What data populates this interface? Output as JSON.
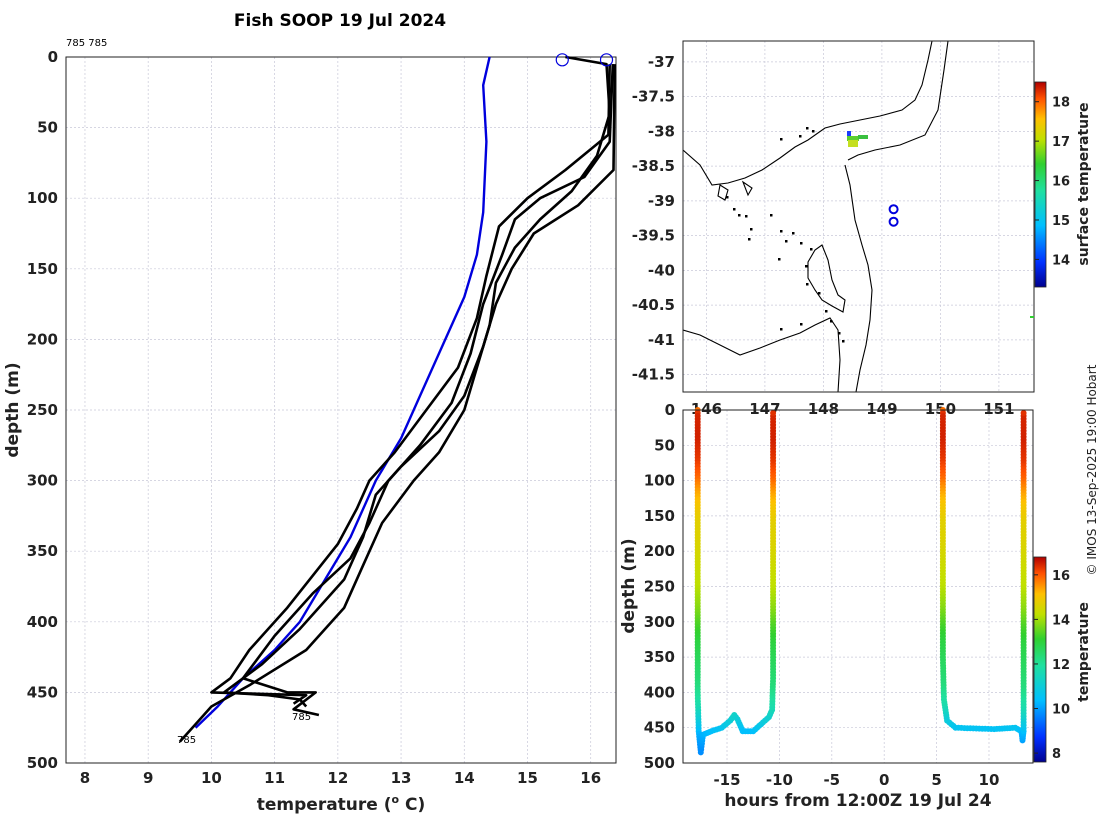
{
  "title": "Fish SOOP 19 Jul 2024",
  "station_label": "785 785",
  "credit": "© IMOS 13-Sep-2025 19:00 Hobart",
  "chart_data": [
    {
      "type": "line",
      "name": "temperature-profiles",
      "xlabel": "temperature (°C)",
      "ylabel": "depth (m)",
      "xlim": [
        7.7,
        16.4
      ],
      "ylim": [
        500,
        0
      ],
      "xticks": [
        8,
        9,
        10,
        11,
        12,
        13,
        14,
        15,
        16
      ],
      "yticks": [
        0,
        50,
        100,
        150,
        200,
        250,
        300,
        350,
        400,
        450,
        500
      ],
      "annotations": [
        "785",
        "785"
      ],
      "series": [
        {
          "name": "climatology",
          "color": "#0000dd",
          "points": [
            [
              14.4,
              0
            ],
            [
              14.3,
              20
            ],
            [
              14.35,
              60
            ],
            [
              14.3,
              110
            ],
            [
              14.2,
              140
            ],
            [
              14.0,
              170
            ],
            [
              13.7,
              200
            ],
            [
              13.3,
              240
            ],
            [
              13.0,
              270
            ],
            [
              12.6,
              300
            ],
            [
              12.2,
              340
            ],
            [
              11.8,
              370
            ],
            [
              11.4,
              400
            ],
            [
              11.0,
              420
            ],
            [
              10.5,
              440
            ],
            [
              10.1,
              460
            ],
            [
              9.75,
              475
            ]
          ]
        },
        {
          "name": "profile-1",
          "color": "#000000",
          "points": [
            [
              15.6,
              0
            ],
            [
              16.25,
              5
            ],
            [
              16.3,
              40
            ],
            [
              16.1,
              70
            ],
            [
              15.7,
              95
            ],
            [
              15.2,
              115
            ],
            [
              14.8,
              135
            ],
            [
              14.5,
              160
            ],
            [
              14.4,
              190
            ],
            [
              14.2,
              220
            ],
            [
              14.0,
              250
            ],
            [
              13.6,
              280
            ],
            [
              13.2,
              300
            ],
            [
              12.7,
              330
            ],
            [
              12.4,
              360
            ],
            [
              12.1,
              390
            ],
            [
              11.5,
              420
            ],
            [
              10.6,
              445
            ],
            [
              10.0,
              460
            ],
            [
              9.8,
              470
            ],
            [
              9.6,
              480
            ],
            [
              9.5,
              485
            ]
          ]
        },
        {
          "name": "profile-2",
          "color": "#000000",
          "points": [
            [
              16.35,
              5
            ],
            [
              16.3,
              60
            ],
            [
              15.9,
              85
            ],
            [
              15.2,
              100
            ],
            [
              14.8,
              115
            ],
            [
              14.6,
              140
            ],
            [
              14.3,
              175
            ],
            [
              14.1,
              210
            ],
            [
              13.8,
              245
            ],
            [
              13.3,
              275
            ],
            [
              12.8,
              300
            ],
            [
              12.5,
              330
            ],
            [
              12.2,
              355
            ],
            [
              11.6,
              380
            ],
            [
              11.0,
              410
            ],
            [
              10.5,
              440
            ],
            [
              11.2,
              450
            ],
            [
              11.65,
              450
            ],
            [
              11.3,
              462
            ],
            [
              11.7,
              466
            ]
          ]
        },
        {
          "name": "profile-3",
          "color": "#000000",
          "points": [
            [
              16.38,
              5
            ],
            [
              16.36,
              80
            ],
            [
              15.8,
              105
            ],
            [
              15.1,
              125
            ],
            [
              14.75,
              150
            ],
            [
              14.5,
              175
            ],
            [
              14.3,
              205
            ],
            [
              14.0,
              240
            ],
            [
              13.6,
              265
            ],
            [
              13.0,
              290
            ],
            [
              12.6,
              310
            ],
            [
              12.4,
              340
            ],
            [
              12.1,
              370
            ],
            [
              11.4,
              405
            ],
            [
              10.8,
              430
            ],
            [
              10.2,
              450
            ],
            [
              10.9,
              452
            ],
            [
              11.4,
              455
            ],
            [
              11.5,
              460
            ]
          ]
        },
        {
          "name": "profile-4",
          "color": "#000000",
          "points": [
            [
              16.3,
              5
            ],
            [
              16.28,
              55
            ],
            [
              15.6,
              80
            ],
            [
              15.0,
              100
            ],
            [
              14.55,
              120
            ],
            [
              14.35,
              155
            ],
            [
              14.2,
              185
            ],
            [
              13.9,
              220
            ],
            [
              13.4,
              250
            ],
            [
              12.9,
              280
            ],
            [
              12.5,
              300
            ],
            [
              12.3,
              320
            ],
            [
              12.0,
              345
            ],
            [
              11.2,
              390
            ],
            [
              10.6,
              420
            ],
            [
              10.3,
              440
            ],
            [
              10.0,
              450
            ],
            [
              11.5,
              452
            ],
            [
              11.3,
              458
            ]
          ]
        }
      ],
      "markers": [
        [
          15.55,
          2
        ],
        [
          16.25,
          2
        ]
      ]
    },
    {
      "type": "scatter",
      "name": "map",
      "lon_ticks": [
        146,
        147,
        148,
        149,
        150,
        151
      ],
      "lon_labels": [
        "146",
        "147",
        "148",
        "149",
        "150",
        "151"
      ],
      "lat_ticks": [
        -37,
        -37.5,
        -38,
        -38.5,
        -39,
        -39.5,
        -40,
        -40.5,
        -41,
        -41.5
      ],
      "lat_labels": [
        "-37",
        "-37.5",
        "-38",
        "-38.5",
        "-39",
        "-39.5",
        "-40",
        "-40.5",
        "-41",
        "-41.5"
      ],
      "xlim": [
        145.6,
        151.6
      ],
      "ylim": [
        -41.75,
        -36.7
      ],
      "drop_points": [
        [
          149.2,
          -39.12
        ],
        [
          149.2,
          -39.3
        ]
      ],
      "colorbar": {
        "label": "surface temperature",
        "ticks": [
          14,
          15,
          16,
          17,
          18
        ],
        "range": [
          13.3,
          18.5
        ]
      }
    },
    {
      "type": "scatter",
      "name": "time-depth",
      "xlabel": "hours from 12:00Z 19 Jul 24",
      "ylabel": "depth (m)",
      "xlim": [
        -19.2,
        14.2
      ],
      "ylim": [
        500,
        0
      ],
      "xticks": [
        -15,
        -10,
        -5,
        0,
        5,
        10
      ],
      "xtick_labels": [
        "-15",
        "-10",
        "-5",
        "0",
        "5",
        "10"
      ],
      "yticks": [
        0,
        50,
        100,
        150,
        200,
        250,
        300,
        350,
        400,
        450,
        500
      ],
      "casts": [
        {
          "points": [
            [
              -17.8,
              0
            ],
            [
              -17.8,
              400
            ],
            [
              -17.7,
              455
            ],
            [
              -17.6,
              470
            ],
            [
              -17.5,
              485
            ],
            [
              -17.3,
              460
            ],
            [
              -16.5,
              455
            ],
            [
              -15.5,
              450
            ],
            [
              -14.7,
              440
            ],
            [
              -14.3,
              432
            ],
            [
              -14.0,
              438
            ],
            [
              -13.5,
              455
            ],
            [
              -12.5,
              455
            ],
            [
              -11.0,
              435
            ],
            [
              -10.7,
              425
            ],
            [
              -10.6,
              380
            ],
            [
              -10.6,
              0
            ]
          ]
        },
        {
          "points": [
            [
              5.6,
              0
            ],
            [
              5.6,
              350
            ],
            [
              5.7,
              410
            ],
            [
              6.0,
              440
            ],
            [
              6.8,
              450
            ],
            [
              8.5,
              451
            ],
            [
              10.5,
              452
            ],
            [
              12.5,
              450
            ],
            [
              13.1,
              455
            ],
            [
              13.2,
              468
            ],
            [
              13.3,
              455
            ],
            [
              13.3,
              0
            ]
          ]
        }
      ],
      "colorbar": {
        "label": "temperature",
        "ticks": [
          8,
          10,
          12,
          14,
          16
        ],
        "range": [
          7.6,
          16.8
        ]
      }
    }
  ]
}
